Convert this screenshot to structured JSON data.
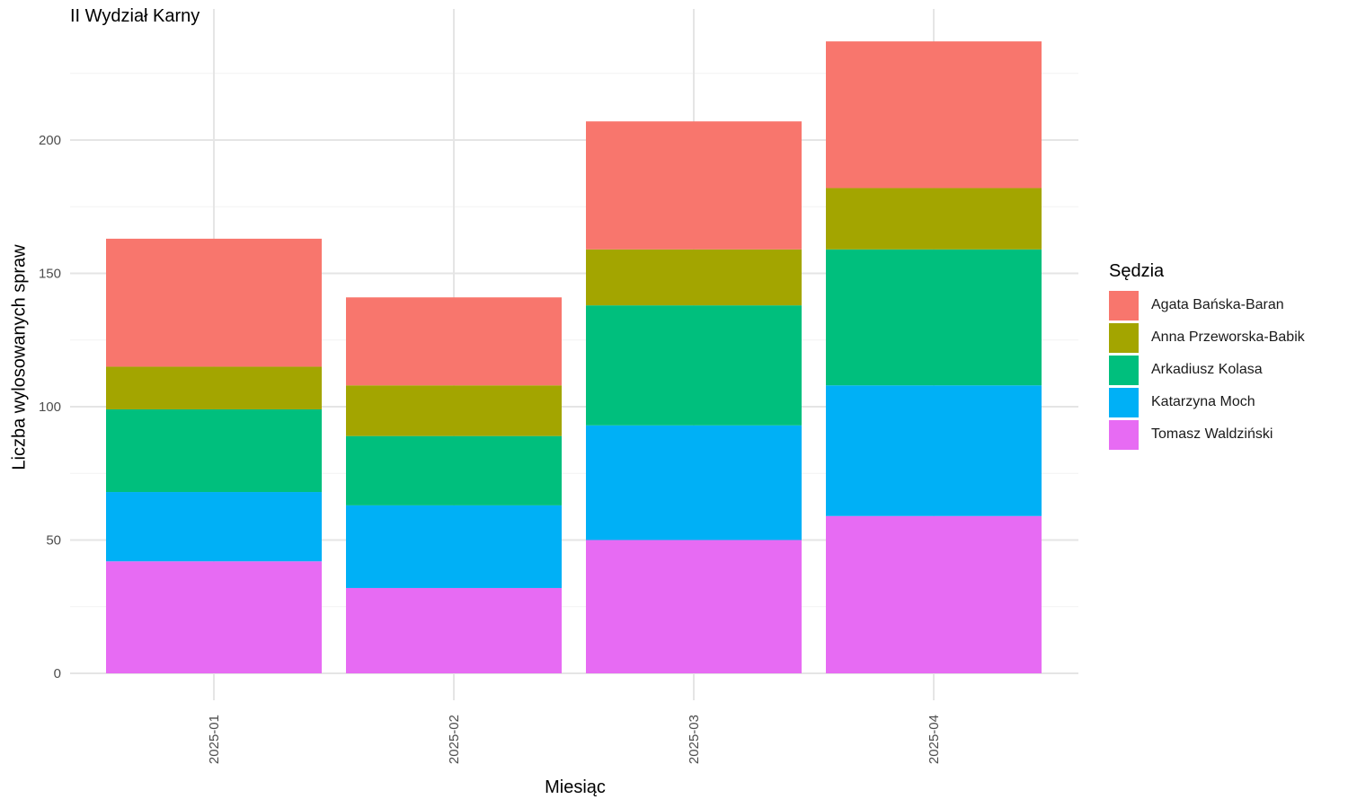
{
  "chart_data": {
    "type": "bar",
    "stacked": true,
    "title": "II Wydział Karny",
    "xlabel": "Miesiąc",
    "ylabel": "Liczba wylosowanych spraw",
    "categories": [
      "2025-01",
      "2025-02",
      "2025-03",
      "2025-04"
    ],
    "ylim": [
      0,
      240
    ],
    "yticks": [
      0,
      50,
      100,
      150,
      200
    ],
    "grid": true,
    "legend_title": "Sędzia",
    "legend_position": "right",
    "series": [
      {
        "name": "Tomasz Waldziński",
        "color": "#E76BF3",
        "values": [
          42,
          32,
          50,
          59
        ]
      },
      {
        "name": "Katarzyna Moch",
        "color": "#00B0F6",
        "values": [
          26,
          31,
          43,
          49
        ]
      },
      {
        "name": "Arkadiusz Kolasa",
        "color": "#00BF7D",
        "values": [
          31,
          26,
          45,
          51
        ]
      },
      {
        "name": "Anna Przeworska-Babik",
        "color": "#A3A500",
        "values": [
          16,
          19,
          21,
          23
        ]
      },
      {
        "name": "Agata Bańska-Baran",
        "color": "#F8766D",
        "values": [
          48,
          33,
          48,
          55
        ]
      }
    ]
  }
}
